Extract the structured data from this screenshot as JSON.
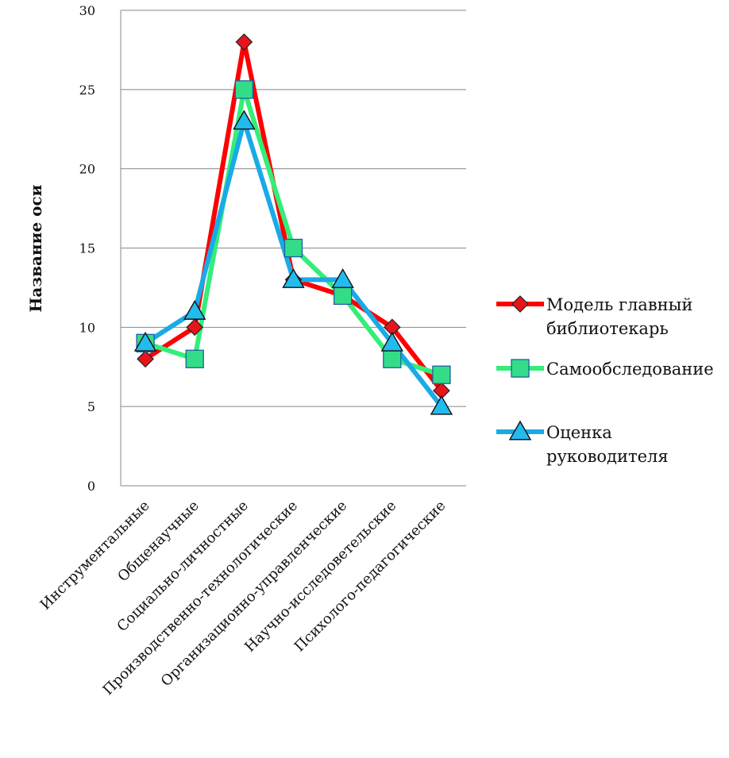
{
  "chart_data": {
    "type": "line",
    "title": "",
    "xlabel": "",
    "ylabel": "Название оси",
    "ylim": [
      0,
      30
    ],
    "yticks": [
      "0",
      "5",
      "10",
      "15",
      "20",
      "25",
      "30"
    ],
    "grid": true,
    "legend_position": "right",
    "categories": [
      "Инструментальные",
      "Общенаучные",
      "Социально-личностные",
      "Производственно-технологические",
      "Организационно-управленческие",
      "Научно-исследоветельские",
      "Психолого-педагогические"
    ],
    "series": [
      {
        "name": "Модель главный библиотекарь",
        "legend_lines": [
          "Модель главный",
          "библиотекарь"
        ],
        "values": [
          8,
          10,
          28,
          13,
          12,
          10,
          6
        ],
        "color": "#ff0000",
        "marker": "diamond",
        "marker_fill": "#e8141c"
      },
      {
        "name": "Самообследование",
        "legend_lines": [
          "Самообследование"
        ],
        "values": [
          9,
          8,
          25,
          15,
          12,
          8,
          7
        ],
        "color": "#33ee77",
        "marker": "square",
        "marker_fill": "#33dd88"
      },
      {
        "name": "Оценка руководителя",
        "legend_lines": [
          "Оценка",
          "руководителя"
        ],
        "values": [
          9,
          11,
          23,
          13,
          13,
          9,
          5
        ],
        "color": "#1aaae6",
        "marker": "triangle",
        "marker_fill": "#22bbee"
      }
    ]
  }
}
